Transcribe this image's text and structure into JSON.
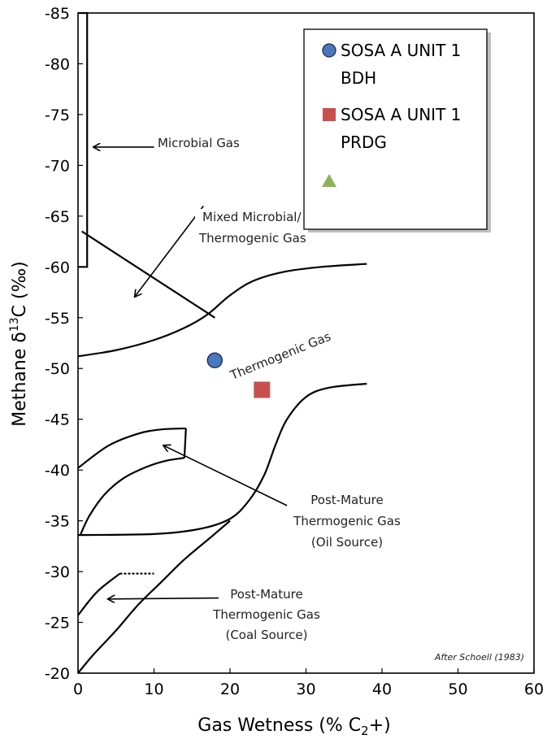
{
  "chart_data": {
    "type": "scatter",
    "title": "",
    "xlabel": "Gas Wetness (% C",
    "xlabel_sub": "2",
    "xlabel_end": "+)",
    "ylabel_pre": "Methane  δ",
    "ylabel_sup": "13",
    "ylabel_post": "C (‰)",
    "xlim": [
      0,
      60
    ],
    "ylim": [
      -20,
      -85
    ],
    "x_ticks": [
      "0",
      "10",
      "20",
      "30",
      "40",
      "50",
      "60"
    ],
    "y_ticks": [
      "-20",
      "-25",
      "-30",
      "-35",
      "-40",
      "-45",
      "-50",
      "-55",
      "-60",
      "-65",
      "-70",
      "-75",
      "-80",
      "-85"
    ],
    "grid": false,
    "legend_position": "top-right",
    "series": [
      {
        "name": "SOSA A UNIT 1 BDH",
        "marker": "circle",
        "color": "#4a78bf",
        "x": [
          18
        ],
        "y": [
          -50.8
        ]
      },
      {
        "name": "SOSA A UNIT 1 PRDG",
        "marker": "square",
        "color": "#c8504c",
        "x": [
          24.2
        ],
        "y": [
          -47.9
        ]
      },
      {
        "name": "",
        "marker": "triangle",
        "color": "#8db356",
        "x": [],
        "y": []
      }
    ],
    "legend_labels": [
      {
        "line1": "SOSA A UNIT 1",
        "line2": "BDH"
      },
      {
        "line1": "SOSA A UNIT 1",
        "line2": "PRDG"
      },
      {
        "line1": "",
        "line2": ""
      }
    ],
    "annotations": {
      "microbial": "Microbial Gas",
      "mixed_1": "Mixed Microbial/",
      "mixed_2": "Thermogenic Gas",
      "thermogenic": "Thermogenic Gas",
      "oil_1": "Post-Mature",
      "oil_2": "Thermogenic Gas",
      "oil_3": "(Oil Source)",
      "coal_1": "Post-Mature",
      "coal_2": "Thermogenic Gas",
      "coal_3": "(Coal Source)",
      "credit": "After Schoell (1983)"
    },
    "boundaries": {
      "microbial_box": [
        [
          0,
          -85
        ],
        [
          1.2,
          -85
        ],
        [
          1.2,
          -60
        ],
        [
          0,
          -60
        ]
      ],
      "mixed_line": [
        [
          0.5,
          -63.5
        ],
        [
          18,
          -55
        ]
      ],
      "thermo_upper": [
        [
          0,
          -51.2
        ],
        [
          5,
          -51.8
        ],
        [
          10,
          -52.8
        ],
        [
          14,
          -54
        ],
        [
          17,
          -55.3
        ],
        [
          20,
          -57.2
        ],
        [
          23,
          -58.6
        ],
        [
          27,
          -59.5
        ],
        [
          32,
          -60
        ],
        [
          38,
          -60.3
        ]
      ],
      "thermo_lower": [
        [
          0,
          -33.6
        ],
        [
          10,
          -33.7
        ],
        [
          16,
          -34.2
        ],
        [
          20,
          -35.2
        ],
        [
          22.5,
          -37
        ],
        [
          24.5,
          -39.5
        ],
        [
          26,
          -42.5
        ],
        [
          27.5,
          -45
        ],
        [
          30,
          -47.2
        ],
        [
          33,
          -48.1
        ],
        [
          38,
          -48.5
        ]
      ],
      "oil_upper": [
        [
          0,
          -40.2
        ],
        [
          4,
          -42.4
        ],
        [
          8,
          -43.6
        ],
        [
          11,
          -44
        ],
        [
          14.2,
          -44.1
        ]
      ],
      "oil_lower": [
        [
          0.3,
          -33.6
        ],
        [
          1.5,
          -35.5
        ],
        [
          3.5,
          -37.6
        ],
        [
          6,
          -39.2
        ],
        [
          9,
          -40.3
        ],
        [
          11.5,
          -40.9
        ],
        [
          14,
          -41.2
        ]
      ],
      "oil_right": [
        [
          14.2,
          -44.1
        ],
        [
          14,
          -41.2
        ]
      ],
      "coal_lower": [
        [
          0,
          -20
        ],
        [
          2,
          -21.8
        ],
        [
          5,
          -24.2
        ],
        [
          8,
          -26.8
        ],
        [
          11,
          -29
        ],
        [
          14,
          -31.2
        ],
        [
          17.5,
          -33.4
        ],
        [
          20,
          -35
        ]
      ],
      "coal_upper": [
        [
          0,
          -25.7
        ],
        [
          2.5,
          -28
        ],
        [
          5.5,
          -29.8
        ]
      ],
      "coal_flat": [
        [
          5.5,
          -29.8
        ],
        [
          10,
          -29.8
        ]
      ],
      "arrows": [
        {
          "from": [
            10,
            -71.8
          ],
          "to": [
            2.1,
            -71.8
          ]
        },
        {
          "from": [
            16.5,
            -66
          ],
          "to": [
            7.5,
            -57.1
          ]
        },
        {
          "from": [
            27.5,
            -36.5
          ],
          "to": [
            11.3,
            -42.4
          ]
        },
        {
          "from": [
            18.5,
            -27.4
          ],
          "to": [
            4,
            -27.3
          ]
        }
      ]
    }
  }
}
